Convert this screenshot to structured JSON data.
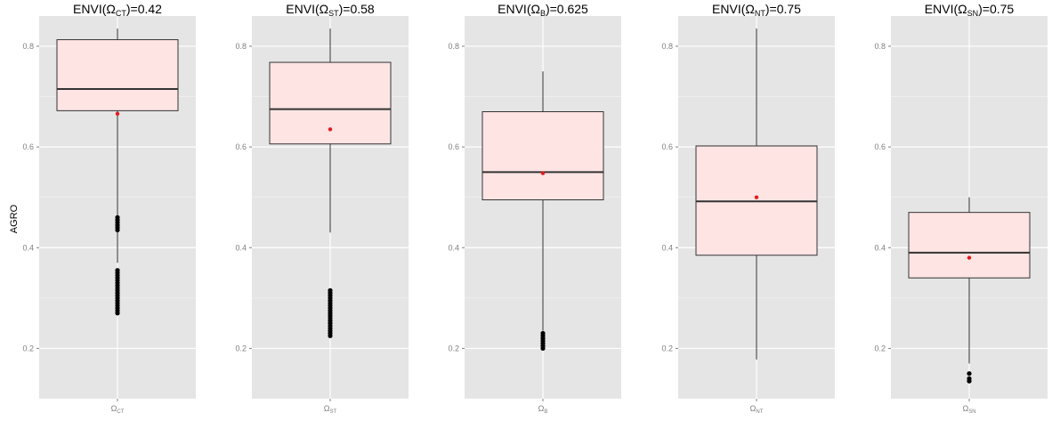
{
  "chart_data": [
    {
      "type": "box",
      "title_base": "ENVI(Ω",
      "title_sub": "CT",
      "title_tail": ")=0.42",
      "ylabel": "AGRO",
      "category": {
        "base": "Ω",
        "sub": "CT"
      },
      "yticks": [
        "0.2",
        "0.4",
        "0.6",
        "0.8"
      ],
      "ylim": [
        0.1,
        0.86
      ],
      "stats": {
        "whisker_low": 0.37,
        "q1": 0.672,
        "median": 0.715,
        "q3": 0.813,
        "whisker_high": 0.835
      },
      "mean": 0.666,
      "outliers": [
        0.27,
        0.275,
        0.28,
        0.285,
        0.29,
        0.295,
        0.3,
        0.305,
        0.31,
        0.315,
        0.32,
        0.325,
        0.33,
        0.335,
        0.34,
        0.345,
        0.35,
        0.355,
        0.435,
        0.44,
        0.445,
        0.45,
        0.455,
        0.46
      ]
    },
    {
      "type": "box",
      "title_base": "ENVI(Ω",
      "title_sub": "ST",
      "title_tail": ")=0.58",
      "ylabel": "",
      "category": {
        "base": "Ω",
        "sub": "ST"
      },
      "yticks": [
        "0.2",
        "0.4",
        "0.6",
        "0.8"
      ],
      "ylim": [
        0.1,
        0.86
      ],
      "stats": {
        "whisker_low": 0.43,
        "q1": 0.606,
        "median": 0.675,
        "q3": 0.768,
        "whisker_high": 0.835
      },
      "mean": 0.635,
      "outliers": [
        0.225,
        0.23,
        0.235,
        0.24,
        0.245,
        0.25,
        0.255,
        0.26,
        0.265,
        0.27,
        0.275,
        0.28,
        0.285,
        0.29,
        0.295,
        0.3,
        0.305,
        0.31,
        0.315
      ]
    },
    {
      "type": "box",
      "title_base": "ENVI(Ω",
      "title_sub": "B",
      "title_tail": ")=0.625",
      "ylabel": "",
      "category": {
        "base": "Ω",
        "sub": "B"
      },
      "yticks": [
        "0.2",
        "0.4",
        "0.6",
        "0.8"
      ],
      "ylim": [
        0.1,
        0.86
      ],
      "stats": {
        "whisker_low": 0.235,
        "q1": 0.495,
        "median": 0.55,
        "q3": 0.67,
        "whisker_high": 0.75
      },
      "mean": 0.548,
      "outliers": [
        0.2,
        0.205,
        0.21,
        0.215,
        0.22,
        0.225,
        0.23
      ]
    },
    {
      "type": "box",
      "title_base": "ENVI(Ω",
      "title_sub": "NT",
      "title_tail": ")=0.75",
      "ylabel": "",
      "category": {
        "base": "Ω",
        "sub": "NT"
      },
      "yticks": [
        "0.2",
        "0.4",
        "0.6",
        "0.8"
      ],
      "ylim": [
        0.1,
        0.86
      ],
      "stats": {
        "whisker_low": 0.178,
        "q1": 0.385,
        "median": 0.492,
        "q3": 0.602,
        "whisker_high": 0.835
      },
      "mean": 0.5,
      "outliers": []
    },
    {
      "type": "box",
      "title_base": "ENVI(Ω",
      "title_sub": "SN",
      "title_tail": ")=0.75",
      "ylabel": "",
      "category": {
        "base": "Ω",
        "sub": "SN"
      },
      "yticks": [
        "0.2",
        "0.4",
        "0.6",
        "0.8"
      ],
      "ylim": [
        0.1,
        0.86
      ],
      "stats": {
        "whisker_low": 0.17,
        "q1": 0.34,
        "median": 0.39,
        "q3": 0.47,
        "whisker_high": 0.5
      },
      "mean": 0.38,
      "outliers": [
        0.135,
        0.14,
        0.15
      ]
    }
  ],
  "colors": {
    "panel_bg": "#e5e5e5",
    "grid": "#ffffff",
    "box_fill": "#ffe4e4",
    "box_stroke": "#333333",
    "median": "#333333",
    "mean": "#e31a1c",
    "outlier": "#000000",
    "whisker": "#333333"
  }
}
